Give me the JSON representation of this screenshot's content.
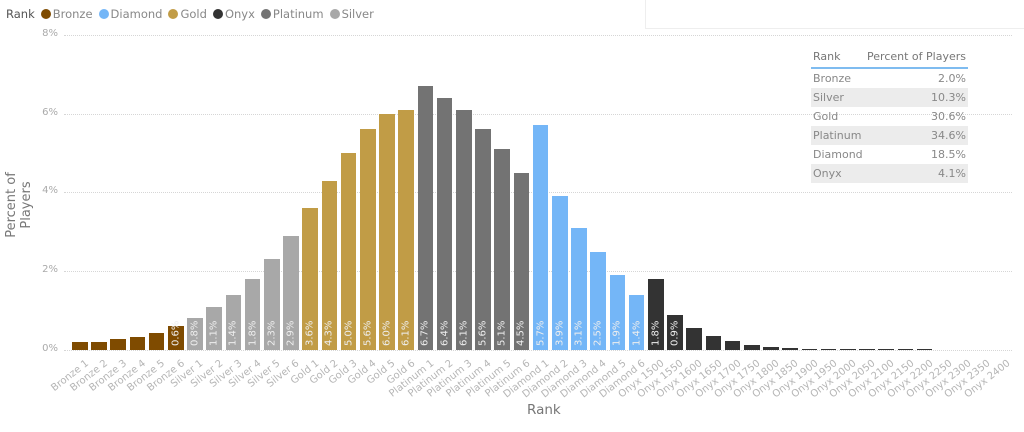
{
  "legend": {
    "title": "Rank",
    "items": [
      {
        "label": "Bronze",
        "color": "#7f4b00"
      },
      {
        "label": "Diamond",
        "color": "#74b6f7"
      },
      {
        "label": "Gold",
        "color": "#c19c46"
      },
      {
        "label": "Onyx",
        "color": "#333333"
      },
      {
        "label": "Platinum",
        "color": "#737373"
      },
      {
        "label": "Silver",
        "color": "#a8a8a8"
      }
    ]
  },
  "table": {
    "headers": [
      "Rank",
      "Percent of Players"
    ],
    "rows": [
      {
        "rank": "Bronze",
        "pct": "2.0%"
      },
      {
        "rank": "Silver",
        "pct": "10.3%"
      },
      {
        "rank": "Gold",
        "pct": "30.6%"
      },
      {
        "rank": "Platinum",
        "pct": "34.6%"
      },
      {
        "rank": "Diamond",
        "pct": "18.5%"
      },
      {
        "rank": "Onyx",
        "pct": "4.1%"
      }
    ]
  },
  "chart_data": {
    "type": "bar",
    "title": "",
    "xlabel": "Rank",
    "ylabel": "Percent of Players",
    "ylim": [
      0,
      8
    ],
    "yticks": [
      "0%",
      "2%",
      "4%",
      "6%",
      "8%"
    ],
    "grid": true,
    "legend_position": "top-left",
    "categories": [
      "Bronze 1",
      "Bronze 2",
      "Bronze 3",
      "Bronze 4",
      "Bronze 5",
      "Bronze 6",
      "Silver 1",
      "Silver 2",
      "Silver 3",
      "Silver 4",
      "Silver 5",
      "Silver 6",
      "Gold 1",
      "Gold 2",
      "Gold 3",
      "Gold 4",
      "Gold 5",
      "Gold 6",
      "Platinum 1",
      "Platinum 2",
      "Platinum 3",
      "Platinum 4",
      "Platinum 5",
      "Platinum 6",
      "Diamond 1",
      "Diamond 2",
      "Diamond 3",
      "Diamond 4",
      "Diamond 5",
      "Diamond 6",
      "Onyx 1500",
      "Onyx 1550",
      "Onyx 1600",
      "Onyx 1650",
      "Onyx 1700",
      "Onyx 1750",
      "Onyx 1800",
      "Onyx 1850",
      "Onyx 1900",
      "Onyx 1950",
      "Onyx 2000",
      "Onyx 2050",
      "Onyx 2100",
      "Onyx 2150",
      "Onyx 2200",
      "Onyx 2250",
      "Onyx 2300",
      "Onyx 2350",
      "Onyx 2400"
    ],
    "groups": [
      "Bronze",
      "Bronze",
      "Bronze",
      "Bronze",
      "Bronze",
      "Bronze",
      "Silver",
      "Silver",
      "Silver",
      "Silver",
      "Silver",
      "Silver",
      "Gold",
      "Gold",
      "Gold",
      "Gold",
      "Gold",
      "Gold",
      "Platinum",
      "Platinum",
      "Platinum",
      "Platinum",
      "Platinum",
      "Platinum",
      "Diamond",
      "Diamond",
      "Diamond",
      "Diamond",
      "Diamond",
      "Diamond",
      "Onyx",
      "Onyx",
      "Onyx",
      "Onyx",
      "Onyx",
      "Onyx",
      "Onyx",
      "Onyx",
      "Onyx",
      "Onyx",
      "Onyx",
      "Onyx",
      "Onyx",
      "Onyx",
      "Onyx",
      "Onyx",
      "Onyx",
      "Onyx",
      "Onyx"
    ],
    "values": [
      0.2,
      0.2,
      0.28,
      0.33,
      0.44,
      0.6,
      0.8,
      1.1,
      1.4,
      1.8,
      2.3,
      2.9,
      3.6,
      4.3,
      5.0,
      5.6,
      6.0,
      6.1,
      6.7,
      6.4,
      6.1,
      5.6,
      5.1,
      4.5,
      5.7,
      3.9,
      3.1,
      2.5,
      1.9,
      1.4,
      1.8,
      0.9,
      0.56,
      0.36,
      0.23,
      0.13,
      0.08,
      0.05,
      0.03,
      0.02,
      0.01,
      0.005,
      0.003,
      0.002,
      0.001,
      0,
      0,
      0,
      0
    ],
    "data_labels": [
      "",
      "",
      "",
      "",
      "",
      "0.6%",
      "0.8%",
      "1.1%",
      "1.4%",
      "1.8%",
      "2.3%",
      "2.9%",
      "3.6%",
      "4.3%",
      "5.0%",
      "5.6%",
      "6.0%",
      "6.1%",
      "6.7%",
      "6.4%",
      "6.1%",
      "5.6%",
      "5.1%",
      "4.5%",
      "5.7%",
      "3.9%",
      "3.1%",
      "2.5%",
      "1.9%",
      "1.4%",
      "1.8%",
      "0.9%",
      "",
      "",
      "",
      "",
      "",
      "",
      "",
      "",
      "",
      "",
      "",
      "",
      "",
      "",
      "",
      "",
      ""
    ]
  }
}
